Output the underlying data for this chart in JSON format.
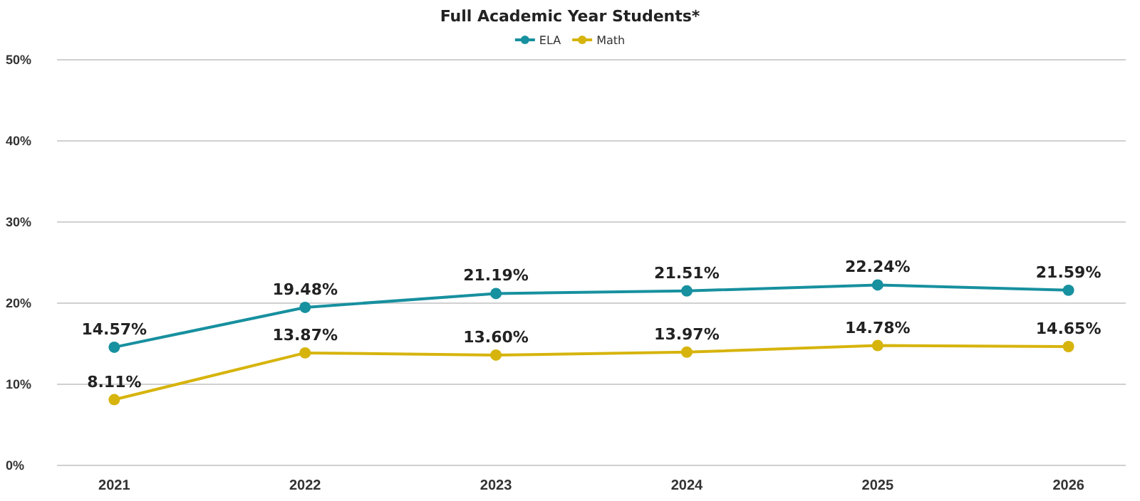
{
  "chart_data": {
    "type": "line",
    "title": "Full Academic Year Students*",
    "categories": [
      "2021",
      "2022",
      "2023",
      "2024",
      "2025",
      "2026"
    ],
    "series": [
      {
        "name": "ELA",
        "color": "#17909f",
        "values": [
          14.57,
          19.48,
          21.19,
          21.51,
          22.24,
          21.59
        ],
        "value_labels": [
          "14.57%",
          "19.48%",
          "21.19%",
          "21.51%",
          "22.24%",
          "21.59%"
        ]
      },
      {
        "name": "Math",
        "color": "#d6b40c",
        "values": [
          8.11,
          13.87,
          13.6,
          13.97,
          14.78,
          14.65
        ],
        "value_labels": [
          "8.11%",
          "13.87%",
          "13.60%",
          "13.97%",
          "14.78%",
          "14.65%"
        ]
      }
    ],
    "ylim": [
      0,
      50
    ],
    "yticks": [
      {
        "value": 0,
        "label": "0%"
      },
      {
        "value": 10,
        "label": "10%"
      },
      {
        "value": 20,
        "label": "20%"
      },
      {
        "value": 30,
        "label": "30%"
      },
      {
        "value": 40,
        "label": "40%"
      },
      {
        "value": 50,
        "label": "50%"
      }
    ],
    "grid": "y",
    "legend": "top",
    "marker": "circle",
    "line_style": "solid"
  }
}
